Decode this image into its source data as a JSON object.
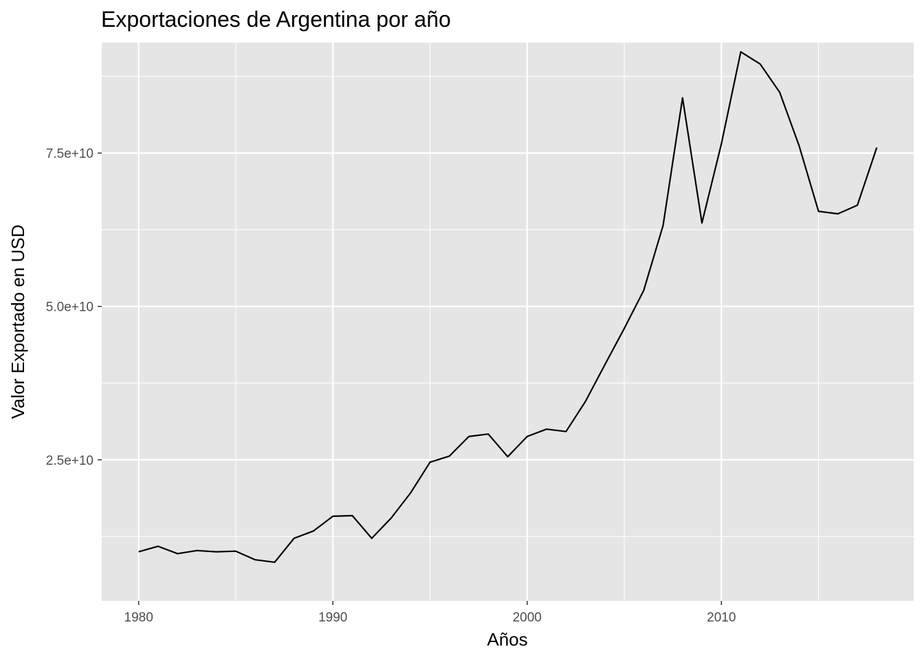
{
  "chart_data": {
    "type": "line",
    "title": "Exportaciones de Argentina por año",
    "xlabel": "Años",
    "ylabel": "Valor Exportado en USD",
    "x_ticks": [
      1980,
      1990,
      2000,
      2010
    ],
    "y_ticks": [
      25000000000,
      50000000000,
      75000000000
    ],
    "y_tick_labels": [
      "2.5e+10",
      "5.0e+10",
      "7.5e+10"
    ],
    "xlim": [
      1978.1,
      2019.9
    ],
    "ylim": [
      2000000000,
      93000000000
    ],
    "grid": true,
    "legend": "none",
    "colors": {
      "panel": "#e5e5e5",
      "grid": "#ffffff",
      "line": "#000000",
      "tick_text": "#4d4d4d"
    },
    "x": [
      1980,
      1981,
      1982,
      1983,
      1984,
      1985,
      1986,
      1987,
      1988,
      1989,
      1990,
      1991,
      1992,
      1993,
      1994,
      1995,
      1996,
      1997,
      1998,
      1999,
      2000,
      2001,
      2002,
      2003,
      2004,
      2005,
      2006,
      2007,
      2008,
      2009,
      2010,
      2011,
      2012,
      2013,
      2014,
      2015,
      2016,
      2017,
      2018
    ],
    "y": [
      10000000000,
      10900000000,
      9700000000,
      10200000000,
      10000000000,
      10100000000,
      8700000000,
      8300000000,
      12200000000,
      13400000000,
      15800000000,
      15900000000,
      12200000000,
      15500000000,
      19600000000,
      24600000000,
      25600000000,
      28800000000,
      29200000000,
      25500000000,
      28800000000,
      30000000000,
      29600000000,
      34500000000,
      40500000000,
      46400000000,
      52600000000,
      63200000000,
      84000000000,
      63600000000,
      76500000000,
      91500000000,
      89500000000,
      84900000000,
      76200000000,
      65500000000,
      65100000000,
      66500000000,
      75900000000
    ]
  }
}
